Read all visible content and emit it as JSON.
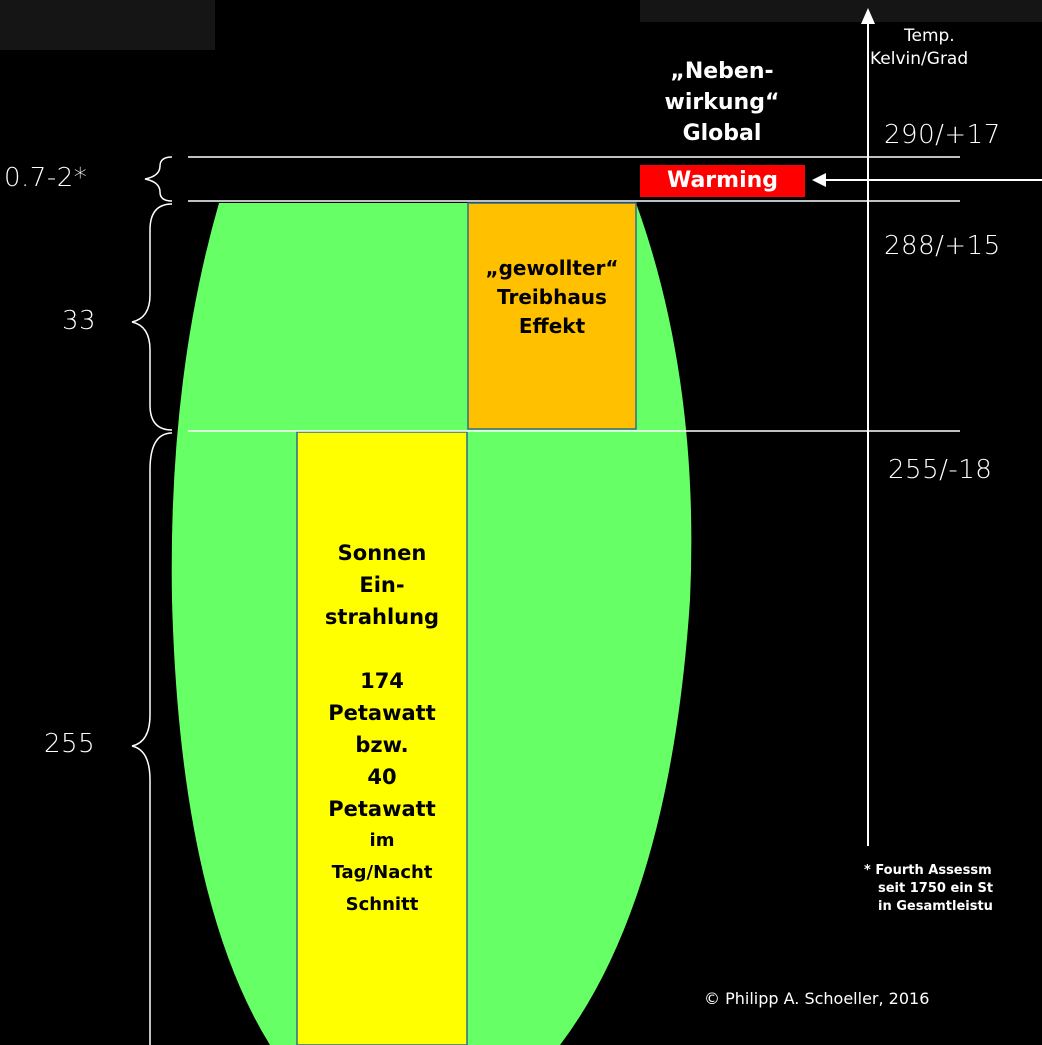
{
  "left_labels": {
    "offset": "0.7-2*",
    "greenhouse": "33",
    "base": "255"
  },
  "axis": {
    "title_line1": "Temp.",
    "title_line2": "Kelvin/Grad"
  },
  "ticks": {
    "t290": "290/+17",
    "t288": "288/+15",
    "t255": "255/-18"
  },
  "side_effect": {
    "line1": "„Neben-",
    "line2": "wirkung“",
    "line3": "Global"
  },
  "warming_label": "Warming",
  "greenhouse_box": {
    "line1": "„gewollter“",
    "line2": "Treibhaus",
    "line3": "Effekt"
  },
  "solar_box": {
    "line1": "Sonnen",
    "line2": "Ein-",
    "line3": "strahlung",
    "line4": "174",
    "line5": "Petawatt",
    "line6": "bzw.",
    "line7": "40",
    "line8": "Petawatt",
    "line9": "im",
    "line10": "Tag/Nacht",
    "line11": "Schnitt"
  },
  "footnote": {
    "line1": "* Fourth Assessm",
    "line2": "seit 1750 ein St",
    "line3": "in Gesamtleistu"
  },
  "copyright": "© Philipp A. Schoeller, 2016",
  "colors": {
    "background": "#000000",
    "ellipse": "#66ff66",
    "greenhouse": "#ffc000",
    "solar": "#ffff00",
    "warming": "#ff0000"
  }
}
